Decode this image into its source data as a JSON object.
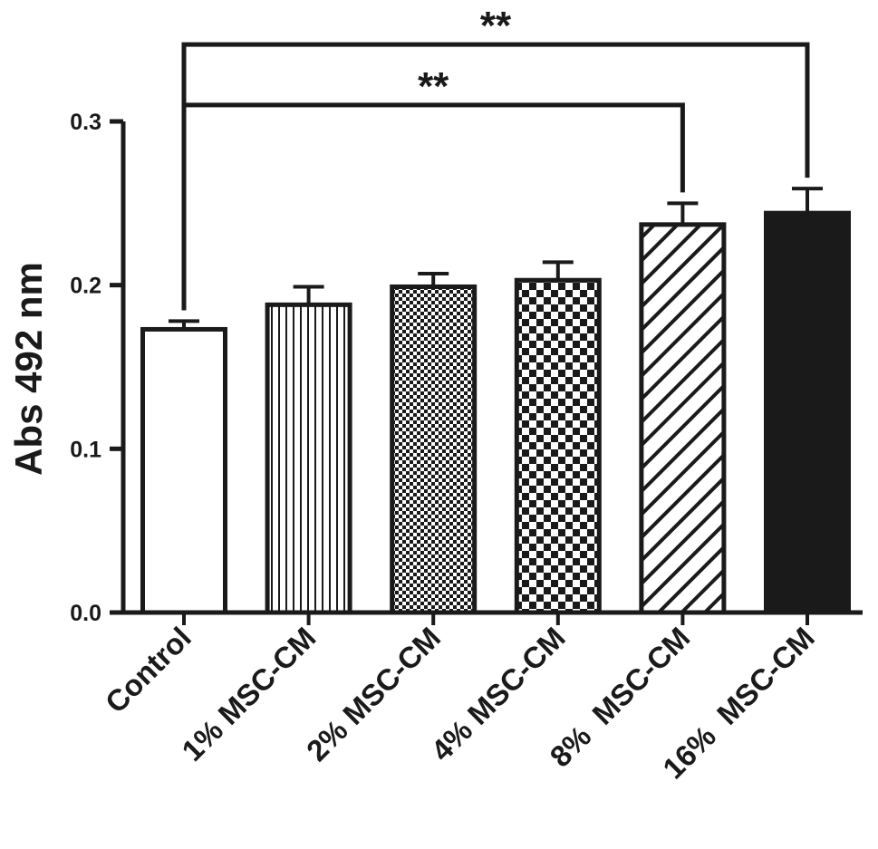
{
  "chart_data": {
    "type": "bar",
    "ylabel": "Abs 492 nm",
    "xlabel": "",
    "ylim": [
      0,
      0.3
    ],
    "yticks": [
      0.0,
      0.1,
      0.2,
      0.3
    ],
    "ytick_labels": [
      "0.0",
      "0.1",
      "0.2",
      "0.3"
    ],
    "categories": [
      "Control",
      "1% MSC-CM",
      "2% MSC-CM",
      "4% MSC-CM",
      "8%  MSC-CM",
      "16%  MSC-CM"
    ],
    "values": [
      0.173,
      0.188,
      0.199,
      0.203,
      0.237,
      0.244
    ],
    "errors": [
      0.005,
      0.011,
      0.008,
      0.011,
      0.013,
      0.015
    ],
    "fills": [
      "white",
      "vertical-stripes",
      "fine-checker",
      "coarse-checker",
      "diagonal-stripes",
      "solid-black"
    ],
    "significance": [
      {
        "from": 0,
        "to": 4,
        "label": "**",
        "level": 0.31
      },
      {
        "from": 0,
        "to": 5,
        "label": "**",
        "level": 0.347
      }
    ],
    "colors": {
      "ink": "#1a1a1a",
      "background": "#ffffff"
    }
  }
}
